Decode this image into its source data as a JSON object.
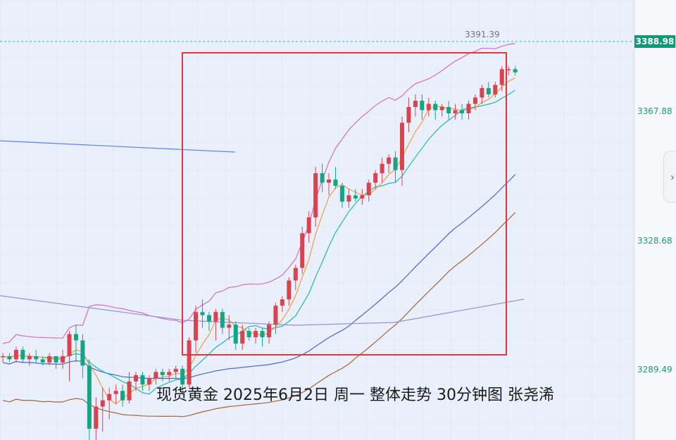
{
  "chart_data": {
    "type": "candlestick",
    "symbol_caption": "现货黄金 2025年6月2日 周一 整体走势 30分钟图 张尧浠",
    "last_price": "3388.98",
    "high_label": "3391.39",
    "y_ticks": [
      "3367.88",
      "3328.68",
      "3289.49"
    ],
    "ylim": [
      3278,
      3403
    ],
    "candles": [
      [
        3299,
        3300,
        3297,
        3299
      ],
      [
        3299,
        3300,
        3297,
        3298
      ],
      [
        3298,
        3302,
        3297,
        3301
      ],
      [
        3301,
        3302,
        3297,
        3298
      ],
      [
        3298,
        3300,
        3296,
        3299
      ],
      [
        3299,
        3301,
        3297,
        3298
      ],
      [
        3298,
        3299,
        3296,
        3297
      ],
      [
        3297,
        3300,
        3296,
        3299
      ],
      [
        3299,
        3299,
        3295,
        3297
      ],
      [
        3297,
        3301,
        3295,
        3299
      ],
      [
        3299,
        3307,
        3291,
        3306
      ],
      [
        3306,
        3309,
        3297,
        3304
      ],
      [
        3304,
        3306,
        3292,
        3296
      ],
      [
        3296,
        3298,
        3271,
        3276
      ],
      [
        3276,
        3286,
        3270,
        3283
      ],
      [
        3283,
        3289,
        3275,
        3285
      ],
      [
        3285,
        3289,
        3279,
        3287
      ],
      [
        3287,
        3290,
        3284,
        3288
      ],
      [
        3288,
        3290,
        3283,
        3285
      ],
      [
        3285,
        3294,
        3284,
        3291
      ],
      [
        3291,
        3294,
        3288,
        3293
      ],
      [
        3293,
        3294,
        3288,
        3290
      ],
      [
        3290,
        3293,
        3288,
        3292
      ],
      [
        3292,
        3295,
        3290,
        3294
      ],
      [
        3294,
        3295,
        3291,
        3293
      ],
      [
        3293,
        3295,
        3291,
        3294
      ],
      [
        3294,
        3296,
        3292,
        3295
      ],
      [
        3295,
        3296,
        3287,
        3290
      ],
      [
        3290,
        3305,
        3289,
        3304
      ],
      [
        3304,
        3315,
        3300,
        3313
      ],
      [
        3313,
        3317,
        3308,
        3312
      ],
      [
        3312,
        3313,
        3307,
        3310
      ],
      [
        3310,
        3314,
        3304,
        3313
      ],
      [
        3313,
        3314,
        3306,
        3308
      ],
      [
        3308,
        3312,
        3304,
        3309
      ],
      [
        3309,
        3310,
        3301,
        3303
      ],
      [
        3303,
        3309,
        3301,
        3307
      ],
      [
        3307,
        3308,
        3304,
        3305
      ],
      [
        3305,
        3308,
        3303,
        3307
      ],
      [
        3307,
        3308,
        3302,
        3305
      ],
      [
        3305,
        3310,
        3303,
        3309
      ],
      [
        3309,
        3316,
        3306,
        3315
      ],
      [
        3315,
        3318,
        3313,
        3317
      ],
      [
        3317,
        3324,
        3315,
        3323
      ],
      [
        3323,
        3328,
        3320,
        3327
      ],
      [
        3327,
        3340,
        3325,
        3338
      ],
      [
        3338,
        3345,
        3335,
        3343
      ],
      [
        3343,
        3359,
        3340,
        3357
      ],
      [
        3357,
        3360,
        3351,
        3354
      ],
      [
        3354,
        3357,
        3350,
        3355
      ],
      [
        3355,
        3359,
        3352,
        3353
      ],
      [
        3353,
        3354,
        3346,
        3348
      ],
      [
        3348,
        3352,
        3346,
        3350
      ],
      [
        3350,
        3352,
        3348,
        3349
      ],
      [
        3349,
        3352,
        3347,
        3350
      ],
      [
        3350,
        3355,
        3348,
        3354
      ],
      [
        3354,
        3358,
        3352,
        3357
      ],
      [
        3357,
        3362,
        3354,
        3360
      ],
      [
        3360,
        3363,
        3357,
        3362
      ],
      [
        3362,
        3364,
        3354,
        3358
      ],
      [
        3358,
        3375,
        3353,
        3373
      ],
      [
        3373,
        3381,
        3370,
        3378
      ],
      [
        3378,
        3382,
        3375,
        3380
      ],
      [
        3380,
        3382,
        3374,
        3377
      ],
      [
        3377,
        3381,
        3375,
        3379
      ],
      [
        3379,
        3380,
        3374,
        3377
      ],
      [
        3377,
        3379,
        3375,
        3378
      ],
      [
        3378,
        3380,
        3374,
        3376
      ],
      [
        3376,
        3379,
        3374,
        3377
      ],
      [
        3377,
        3379,
        3374,
        3376
      ],
      [
        3376,
        3380,
        3374,
        3379
      ],
      [
        3379,
        3382,
        3377,
        3381
      ],
      [
        3381,
        3385,
        3379,
        3384
      ],
      [
        3384,
        3386,
        3381,
        3382
      ],
      [
        3382,
        3386,
        3381,
        3385
      ],
      [
        3385,
        3391,
        3383,
        3390
      ],
      [
        3390,
        3391,
        3388,
        3390
      ],
      [
        3390,
        3391,
        3388,
        3389
      ]
    ],
    "indicators": {
      "ma_orange": "#f59b3a",
      "ma_cyan": "#1fb8b4",
      "ma_blue": "#4a63d6",
      "ma_brown": "#a4633a",
      "boll_pink": "#d66bc2",
      "long_purple": "#9c8cd8",
      "trend_blue": "#5a83e6"
    },
    "colors": {
      "up": "#d9434f",
      "down": "#14a584",
      "box": "#e0363c"
    }
  }
}
